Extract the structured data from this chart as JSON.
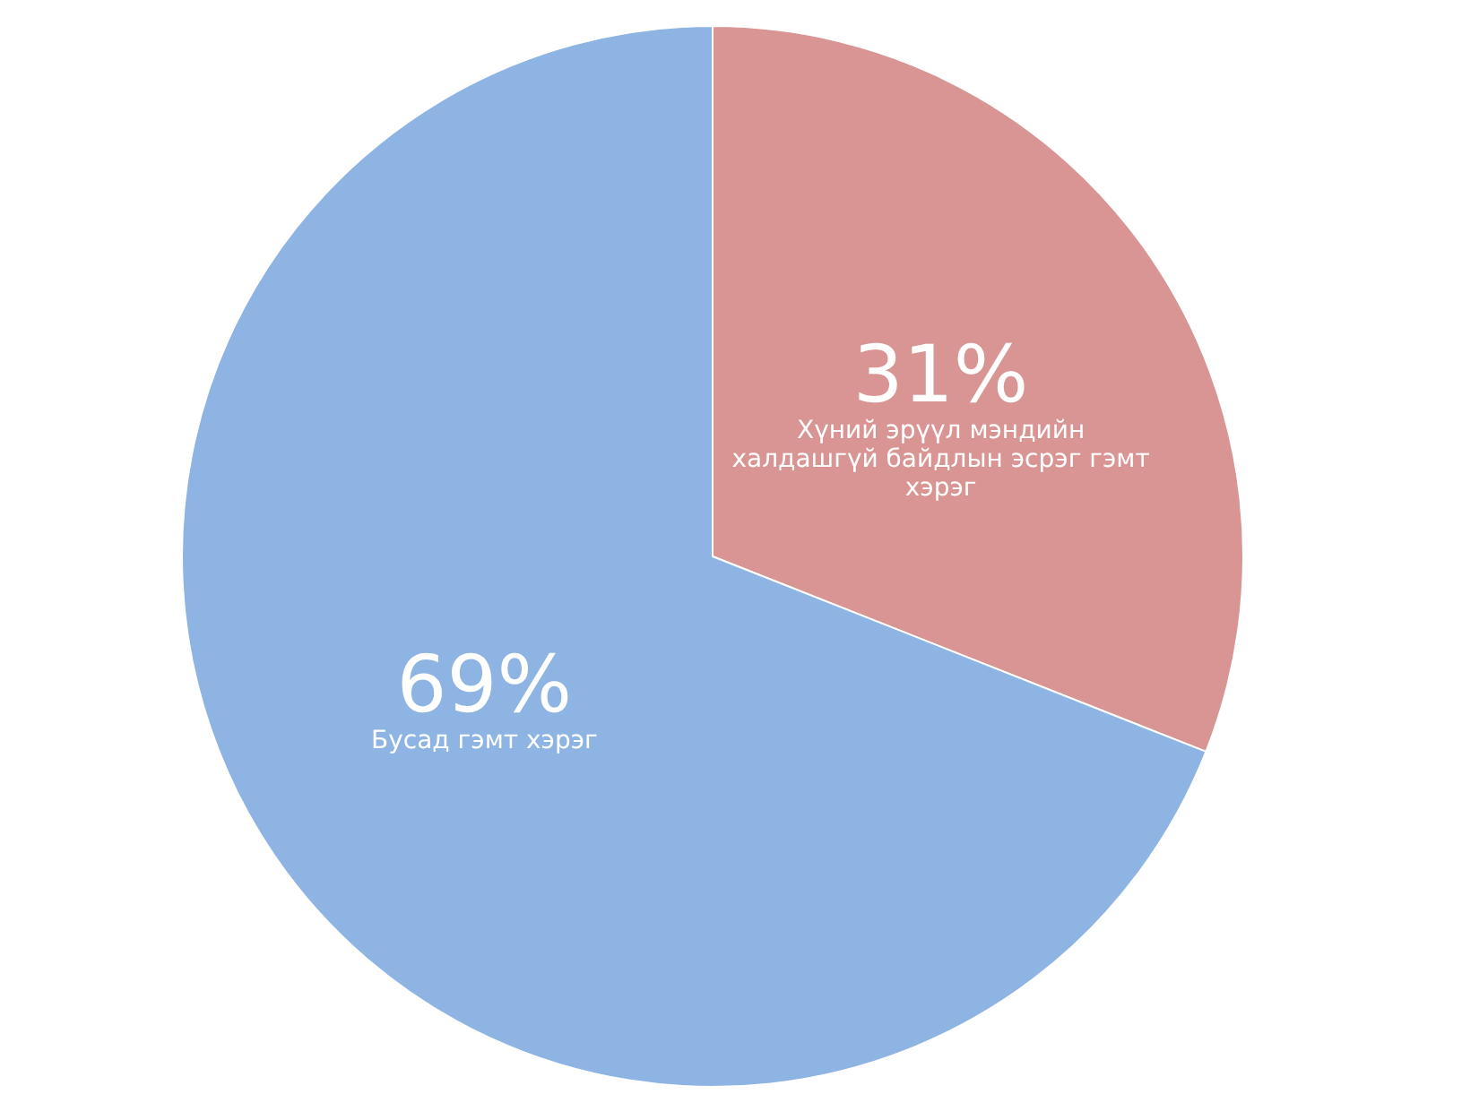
{
  "chart_data": {
    "type": "pie",
    "categories": [
      "Хүний эрүүл мэндийн халдашгүй байдлын эсрэг гэмт хэрэг",
      "Бусад гэмт хэрэг"
    ],
    "values": [
      31,
      69
    ],
    "value_labels": [
      "31%",
      "69%"
    ],
    "colors": [
      "#d99594",
      "#8eb4e3"
    ],
    "legend": false
  }
}
